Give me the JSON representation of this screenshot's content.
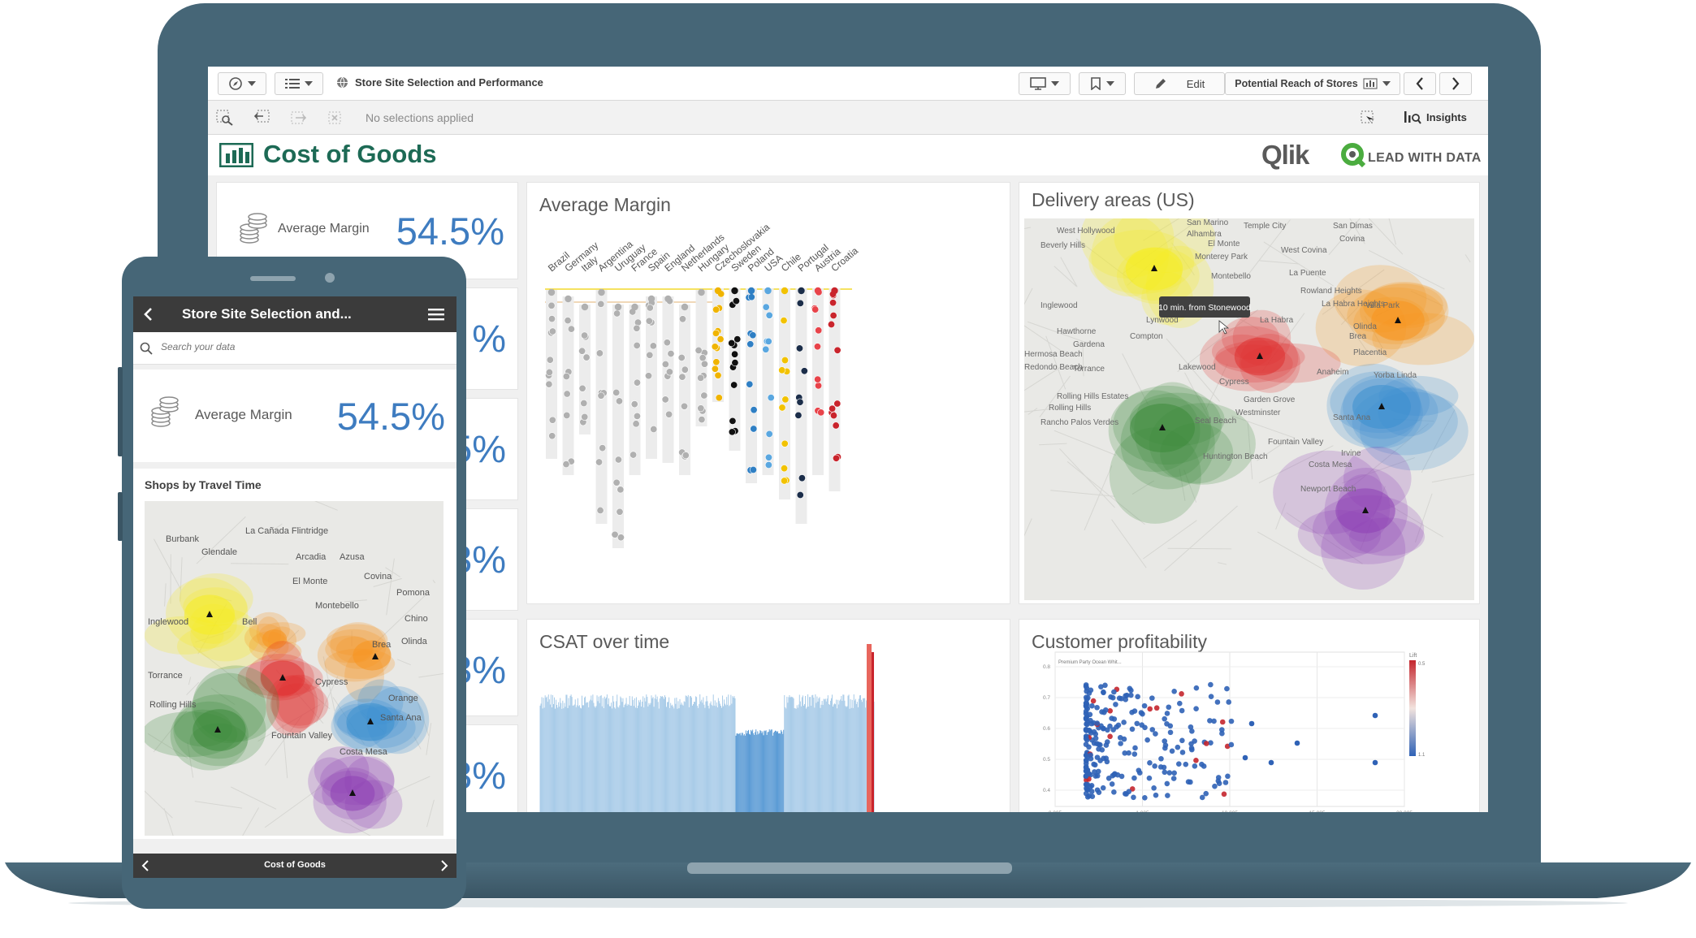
{
  "app": {
    "title": "Store Site Selection and Performance",
    "selections": "No selections applied",
    "edit_label": "Edit",
    "sheet_selector": "Potential Reach of Stores",
    "insights_label": "Insights"
  },
  "sheet": {
    "title": "Cost of Goods",
    "logo_text": "Qlik",
    "tagline": "LEAD WITH DATA"
  },
  "kpis": [
    {
      "label": "Average Margin",
      "value": "54.5%"
    },
    {
      "value": "%"
    },
    {
      "value": "5%"
    },
    {
      "value": "3%"
    },
    {
      "value": "3%"
    },
    {
      "value": "3%"
    }
  ],
  "avg_margin_chart": {
    "title": "Average Margin",
    "countries": [
      "Brazil",
      "Germany",
      "Italy",
      "Argentina",
      "Uruguay",
      "France",
      "Spain",
      "England",
      "Netherlands",
      "Hungary",
      "Czechoslovakia",
      "Sweden",
      "Poland",
      "USA",
      "Chile",
      "Portugal",
      "Austria",
      "Croatia"
    ]
  },
  "delivery_map": {
    "title": "Delivery areas (US)",
    "tooltip": "10 min. from Stonewood",
    "places": [
      "West Hollywood",
      "San Marino",
      "Temple City",
      "San Dimas",
      "Alhambra",
      "Beverly Hills",
      "El Monte",
      "Covina",
      "West Covina",
      "Monterey Park",
      "Montebello",
      "La Puente",
      "Rowland Heights",
      "La Habra Heights",
      "Inglewood",
      "Lynwood",
      "La Habra",
      "Hawthorne",
      "Compton",
      "Olinda",
      "Gardena",
      "Placentia",
      "Torrance",
      "Lakewood",
      "Anaheim",
      "Cypress",
      "Rolling Hills Estates",
      "Rolling Hills",
      "Garden Grove",
      "Westminster",
      "Rancho Palos Verdes",
      "Seal Beach",
      "Santa Ana",
      "Fountain Valley",
      "Irvine",
      "Huntington Beach",
      "Costa Mesa",
      "Newport Beach",
      "Hermosa Beach",
      "Redondo Beach",
      "Brea",
      "Yorba Linda",
      "Villa Park"
    ]
  },
  "csat_chart": {
    "title": "CSAT over time"
  },
  "profitability_chart": {
    "title": "Customer profitability",
    "legend_title": "Lift",
    "legend_max": "0.5",
    "legend_min": "1.1",
    "annotation": "Premium Party Ocean Whit...",
    "y_ticks": [
      "0.8",
      "0.7",
      "0.6",
      "0.5",
      "0.4"
    ],
    "x_ticks": [
      "0.005",
      "1,005",
      "10,005",
      "15,005",
      "20,005"
    ],
    "colors": {
      "high": "#c4262e",
      "low": "#2f62b6"
    }
  },
  "phone": {
    "header_title": "Store Site Selection and...",
    "search_placeholder": "Search your data",
    "kpi_label": "Average Margin",
    "kpi_value": "54.5%",
    "map_title": "Shops by Travel Time",
    "footer_title": "Cost of Goods",
    "places": [
      "La Cañada Flintridge",
      "Burbank",
      "Glendale",
      "Arcadia",
      "Azusa",
      "Covina",
      "El Monte",
      "Pomona",
      "Montebello",
      "Chino",
      "Inglewood",
      "Bell",
      "Olinda",
      "Brea",
      "Cypress",
      "Rolling Hills",
      "Orange",
      "Santa Ana",
      "Fountain Valley",
      "Costa Mesa",
      "Torrance"
    ]
  },
  "colors": {
    "accent_green": "#1d6a55",
    "kpi_blue": "#3e7cc0",
    "device": "#466677"
  }
}
